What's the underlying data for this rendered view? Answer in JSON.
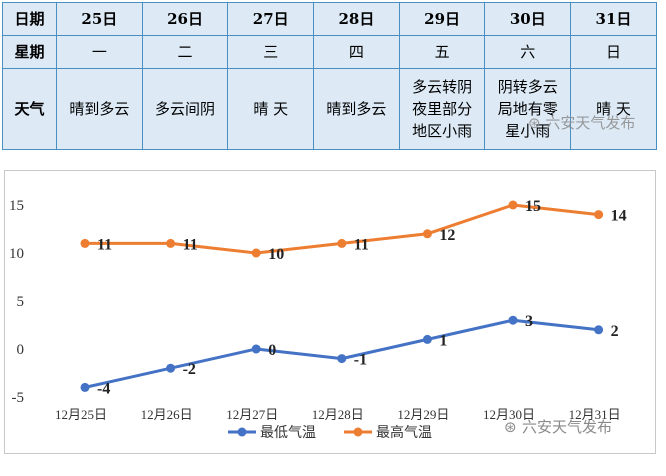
{
  "table": {
    "row_labels": {
      "date": "日期",
      "weekday": "星期",
      "weather": "天气"
    },
    "days": [
      {
        "date": "25日",
        "weekday": "一",
        "weather": "晴到多云"
      },
      {
        "date": "26日",
        "weekday": "二",
        "weather": "多云间阴"
      },
      {
        "date": "27日",
        "weekday": "三",
        "weather": "晴 天"
      },
      {
        "date": "28日",
        "weekday": "四",
        "weather": "晴到多云"
      },
      {
        "date": "29日",
        "weekday": "五",
        "weather": "多云转阴\n夜里部分\n地区小雨"
      },
      {
        "date": "30日",
        "weekday": "六",
        "weather": "阴转多云\n局地有零\n星小雨"
      },
      {
        "date": "31日",
        "weekday": "日",
        "weather": "晴 天"
      }
    ],
    "header_bg": "#ddeaf6",
    "border_color": "#4a8fc2"
  },
  "watermarks": {
    "table": "六安天气发布",
    "chart": "六安天气发布"
  },
  "chart_data": {
    "type": "line",
    "categories": [
      "12月25日",
      "12月26日",
      "12月27日",
      "12月28日",
      "12月29日",
      "12月30日",
      "12月31日"
    ],
    "series": [
      {
        "name": "最低气温",
        "values": [
          -4,
          -2,
          0,
          -1,
          1,
          3,
          2
        ],
        "color": "#4472c4"
      },
      {
        "name": "最高气温",
        "values": [
          11,
          11,
          10,
          11,
          12,
          15,
          14
        ],
        "color": "#ed7d31"
      }
    ],
    "yticks": [
      15,
      10,
      5,
      0,
      -5
    ],
    "ylim": [
      -5,
      15
    ],
    "grid": false,
    "legend": "bottom"
  }
}
